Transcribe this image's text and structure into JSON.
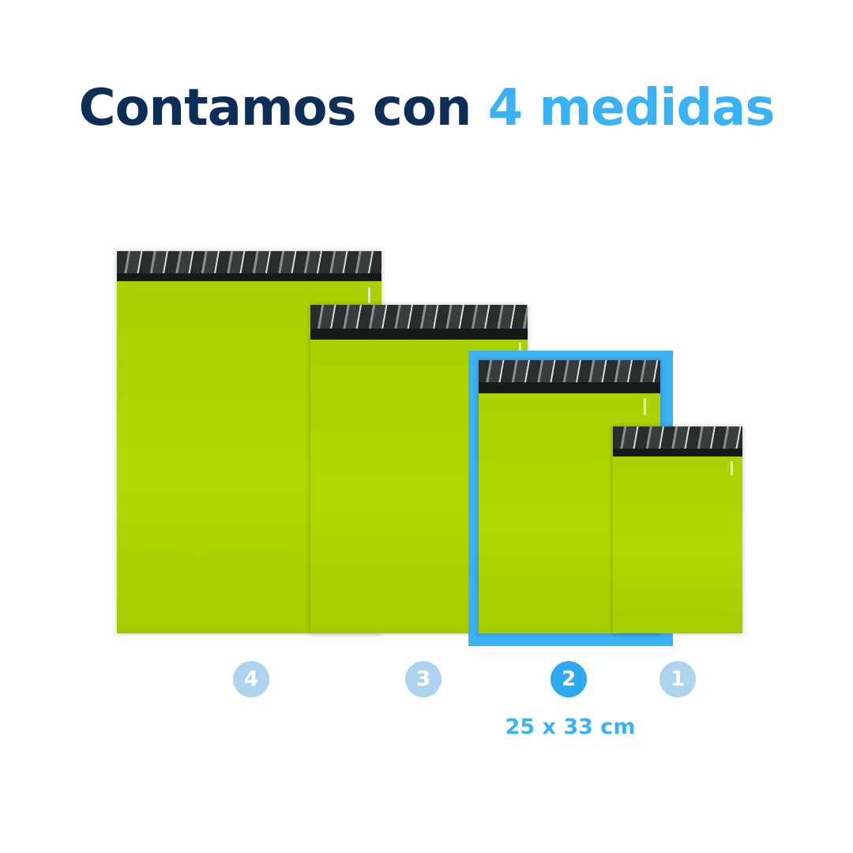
{
  "title": {
    "main": "Contamos con ",
    "accent": "4 medidas"
  },
  "colors": {
    "navy": "#0d2f57",
    "accent": "#3bb2f3",
    "bag": "#aed100",
    "inactive_badge": "#aed3ee"
  },
  "sizes": [
    {
      "number": "4",
      "selected": false
    },
    {
      "number": "3",
      "selected": false
    },
    {
      "number": "2",
      "selected": true,
      "dimension": "25 x 33 cm"
    },
    {
      "number": "1",
      "selected": false
    }
  ]
}
